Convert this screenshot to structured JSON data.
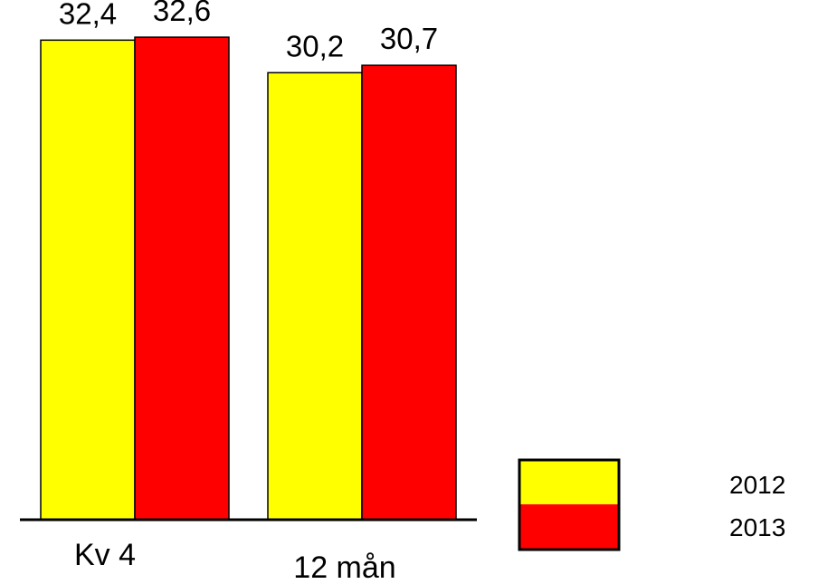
{
  "chart_data": {
    "type": "bar",
    "categories": [
      "Kv 4",
      "12 mån"
    ],
    "series": [
      {
        "name": "2012",
        "values": [
          32.4,
          30.2
        ],
        "value_labels": [
          "32,4",
          "30,2"
        ],
        "color": "#ffff00"
      },
      {
        "name": "2013",
        "values": [
          32.6,
          30.7
        ],
        "value_labels": [
          "32,6",
          "30,7"
        ],
        "color": "#ff0000"
      }
    ],
    "title": "",
    "xlabel": "",
    "ylabel": "",
    "ylim": [
      0,
      34.5
    ],
    "grid": false,
    "legend_position": "bottom-right"
  }
}
